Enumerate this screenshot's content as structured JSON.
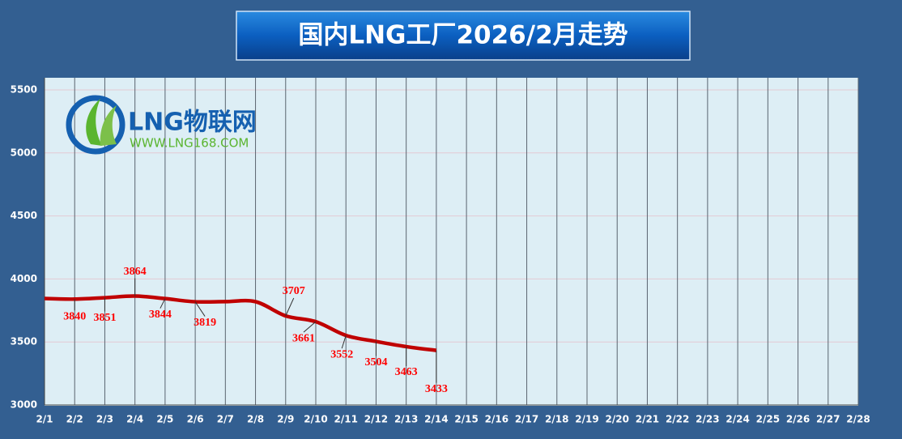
{
  "chart_data": {
    "type": "line",
    "title": "国内LNG工厂2026/2月走势",
    "logo": {
      "text": "LNG物联网",
      "url": "WWW.LNG168.COM"
    },
    "categories": [
      "2/1",
      "2/2",
      "2/3",
      "2/4",
      "2/5",
      "2/6",
      "2/7",
      "2/8",
      "2/9",
      "2/10",
      "2/11",
      "2/12",
      "2/13",
      "2/14",
      "2/15",
      "2/16",
      "2/17",
      "2/18",
      "2/19",
      "2/20",
      "2/21",
      "2/22",
      "2/23",
      "2/24",
      "2/25",
      "2/26",
      "2/27",
      "2/28"
    ],
    "series": [
      {
        "name": null,
        "color": "#c00000",
        "values": [
          3845,
          3840,
          3851,
          3864,
          3844,
          3819,
          3820,
          3820,
          3707,
          3661,
          3552,
          3504,
          3463,
          3433,
          null,
          null,
          null,
          null,
          null,
          null,
          null,
          null,
          null,
          null,
          null,
          null,
          null,
          null
        ],
        "value_labels": [
          null,
          "3840",
          "3851",
          "3864",
          "3844",
          "3819",
          null,
          null,
          "3707",
          "3661",
          "3552",
          "3504",
          "3463",
          "3433",
          null,
          null,
          null,
          null,
          null,
          null,
          null,
          null,
          null,
          null,
          null,
          null,
          null,
          null
        ]
      }
    ],
    "ylim": [
      3000,
      5500
    ],
    "yticks": [
      3000,
      3500,
      4000,
      4500,
      5000,
      5500
    ],
    "grid": true
  }
}
